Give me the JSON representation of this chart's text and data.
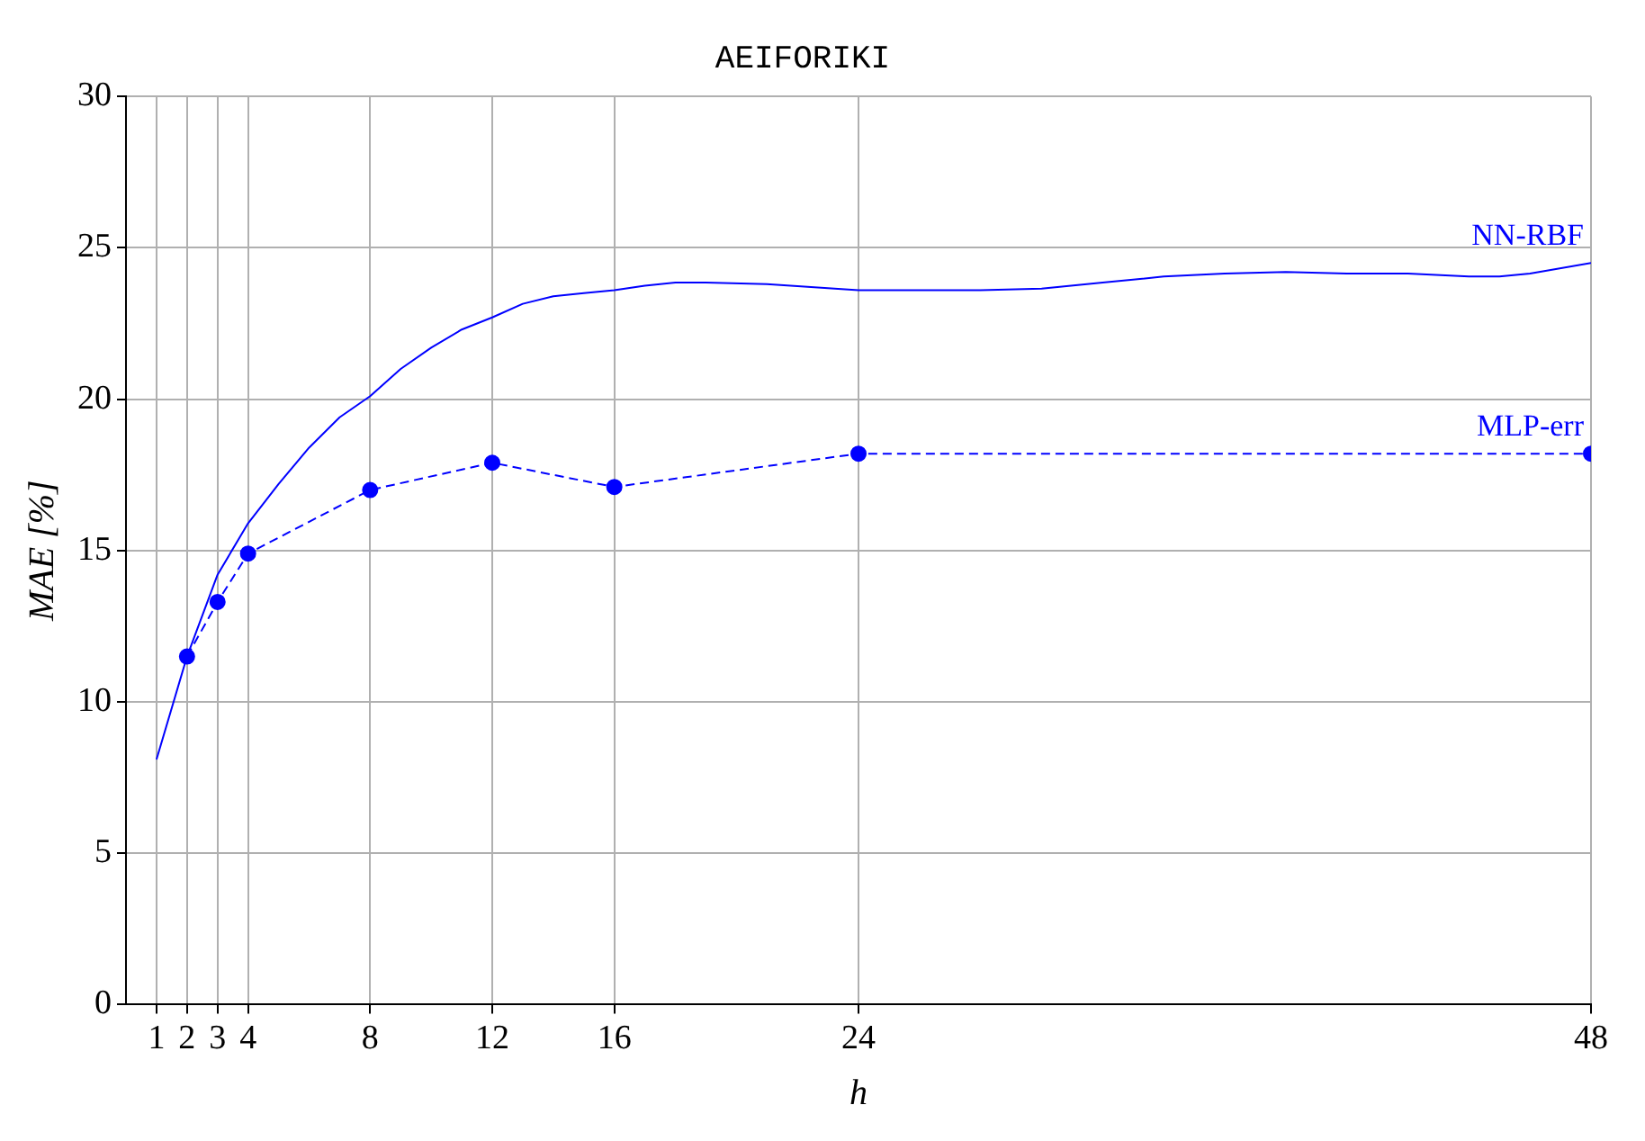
{
  "chart_data": {
    "type": "line",
    "title": "AEIFORIKI",
    "xlabel": "h",
    "ylabel": "MAE [%]",
    "xlim": [
      0,
      48
    ],
    "xticks": [
      1,
      2,
      3,
      4,
      8,
      12,
      16,
      24,
      48
    ],
    "ylim": [
      0,
      30
    ],
    "yticks": [
      0,
      5,
      10,
      15,
      20,
      25,
      30
    ],
    "grid": true,
    "series": [
      {
        "name": "NN-RBF",
        "color": "#0000ff",
        "marker": "none",
        "line_style": "solid",
        "x": [
          1,
          2,
          3,
          4,
          5,
          6,
          7,
          8,
          9,
          10,
          11,
          12,
          13,
          14,
          15,
          16,
          17,
          18,
          19,
          21,
          24,
          28,
          30,
          32,
          34,
          36,
          38,
          40,
          42,
          44,
          45,
          46,
          48
        ],
        "values": [
          8.1,
          11.5,
          14.2,
          15.9,
          17.2,
          18.4,
          19.4,
          20.1,
          21.0,
          21.7,
          22.3,
          22.7,
          23.15,
          23.4,
          23.5,
          23.6,
          23.75,
          23.85,
          23.85,
          23.8,
          23.6,
          23.6,
          23.65,
          23.85,
          24.05,
          24.15,
          24.2,
          24.15,
          24.15,
          24.05,
          24.05,
          24.15,
          24.5
        ]
      },
      {
        "name": "MLP-err",
        "color": "#0000ff",
        "marker": "circle",
        "line_style": "dashed",
        "x": [
          2,
          3,
          4,
          8,
          12,
          16,
          24,
          48
        ],
        "values": [
          11.5,
          13.3,
          14.9,
          17.0,
          17.9,
          17.1,
          18.2,
          18.2
        ]
      }
    ]
  }
}
